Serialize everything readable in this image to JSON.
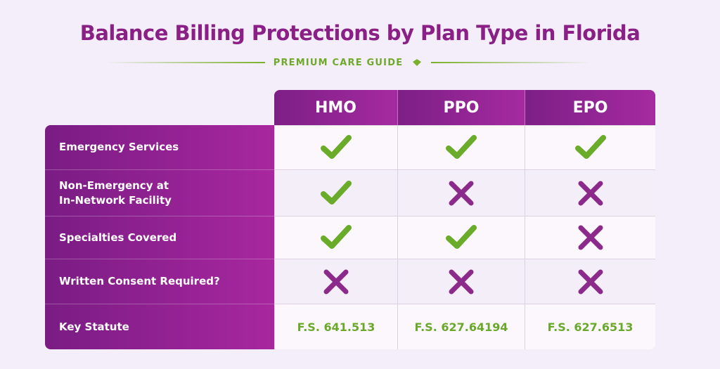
{
  "header": {
    "title": "Balance Billing Protections by Plan Type in Florida",
    "subtitle": "PREMIUM CARE GUIDE"
  },
  "table": {
    "columns": [
      "HMO",
      "PPO",
      "EPO"
    ],
    "rows": [
      {
        "label": "Emergency Services",
        "cells": [
          true,
          true,
          true
        ]
      },
      {
        "label": "Non-Emergency at\nIn-Network Facility",
        "cells": [
          true,
          false,
          false
        ]
      },
      {
        "label": "Specialties Covered",
        "cells": [
          true,
          true,
          false
        ]
      },
      {
        "label": "Written Consent Required?",
        "cells": [
          false,
          false,
          false
        ]
      },
      {
        "label": "Key Statute",
        "cells": [
          "F.S. 641.513",
          "F.S. 627.64194",
          "F.S. 627.6513"
        ]
      }
    ]
  }
}
